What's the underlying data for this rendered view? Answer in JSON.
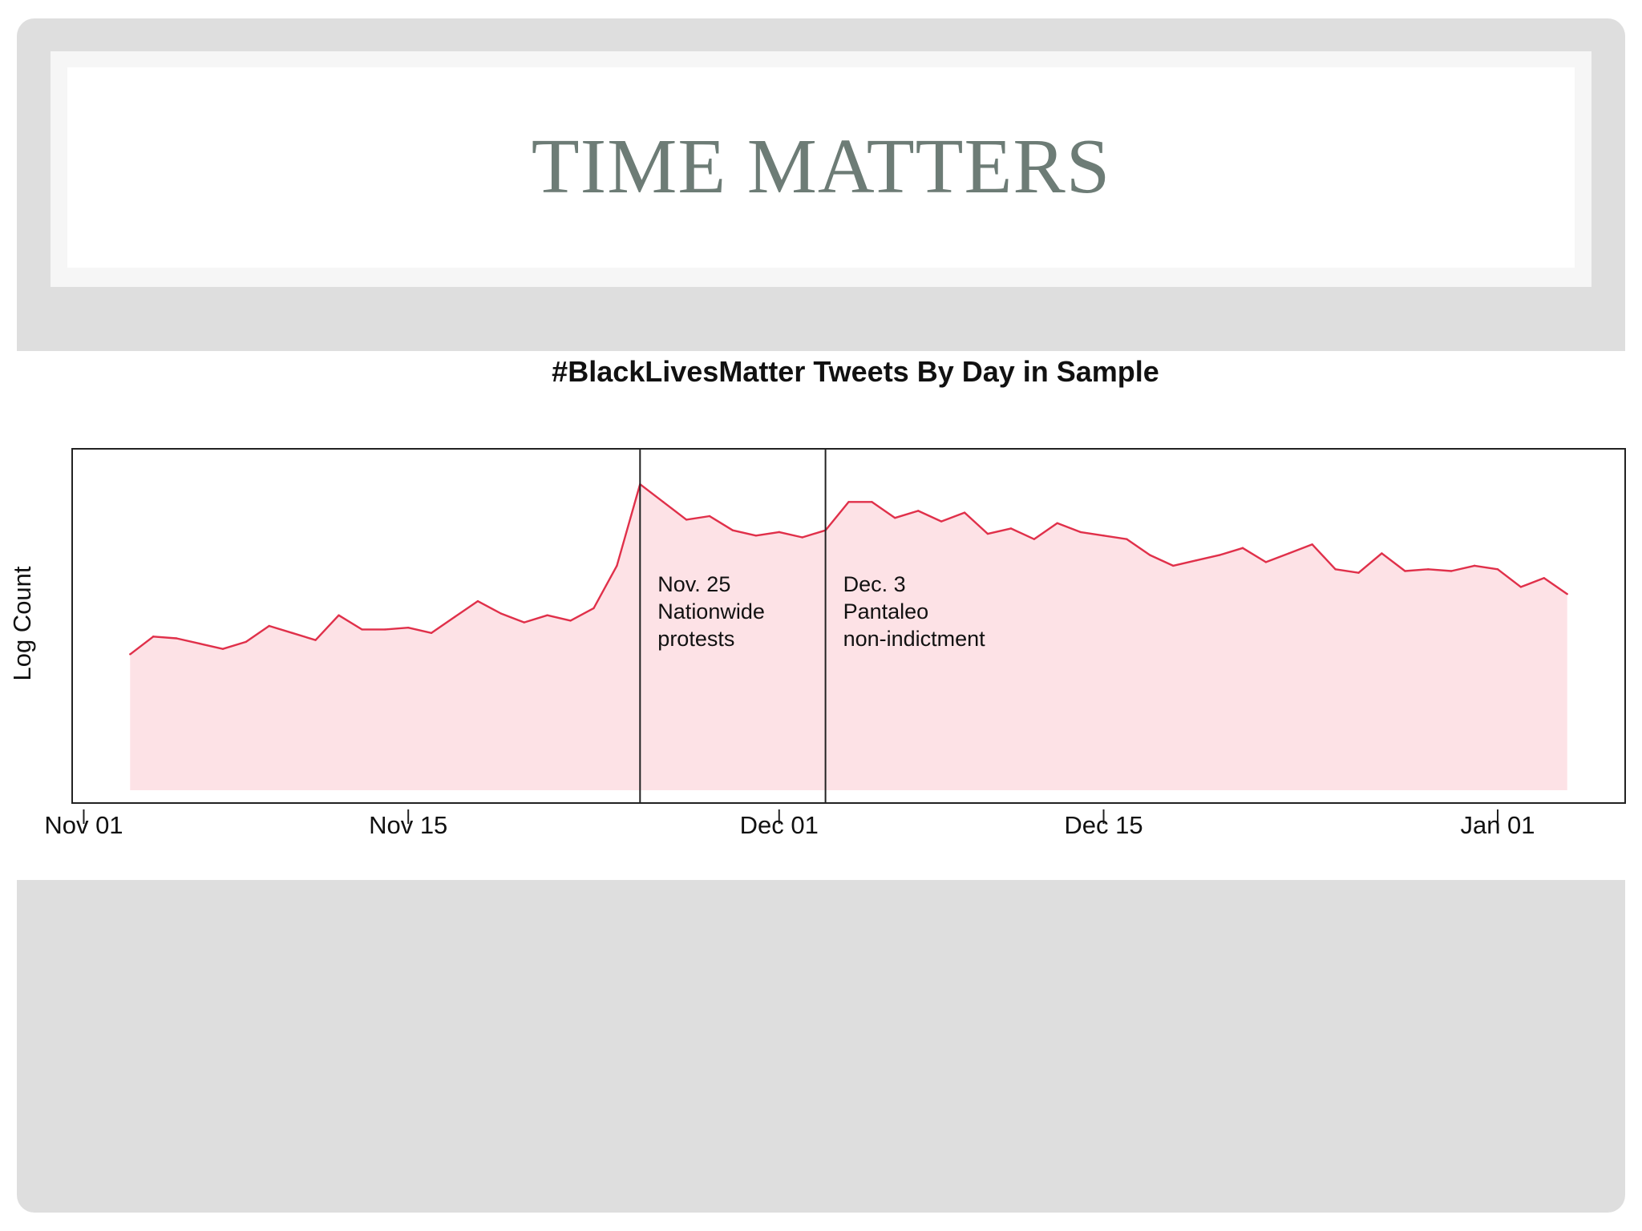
{
  "slide": {
    "title": "TIME MATTERS"
  },
  "chart_data": {
    "type": "area",
    "title": "#BlackLivesMatter Tweets By Day in Sample",
    "xlabel": "",
    "ylabel": "Log Count",
    "x_ticks": [
      {
        "label": "Nov 01",
        "day": 0
      },
      {
        "label": "Nov 15",
        "day": 14
      },
      {
        "label": "Dec 01",
        "day": 30
      },
      {
        "label": "Dec 15",
        "day": 44
      },
      {
        "label": "Jan 01",
        "day": 61
      }
    ],
    "xlim": [
      -0.5,
      66.5
    ],
    "ylim": [
      0,
      100
    ],
    "series": [
      {
        "name": "#BlackLivesMatter tweets",
        "line_color": "#e0304a",
        "fill_color": "#fde2e6",
        "days": [
          2,
          3,
          4,
          5,
          6,
          7,
          8,
          9,
          10,
          11,
          12,
          13,
          14,
          15,
          16,
          17,
          18,
          19,
          20,
          21,
          22,
          23,
          24,
          25,
          26,
          27,
          28,
          29,
          30,
          31,
          32,
          33,
          34,
          35,
          36,
          37,
          38,
          39,
          40,
          41,
          42,
          43,
          44,
          45,
          46,
          47,
          48,
          49,
          50,
          51,
          52,
          53,
          54,
          55,
          56,
          57,
          58,
          59,
          60,
          61,
          62,
          63,
          64
        ],
        "values": [
          42,
          47,
          46.5,
          45,
          43.5,
          45.5,
          50,
          48,
          46,
          53,
          49,
          49,
          49.5,
          48,
          52.5,
          57,
          53.5,
          51,
          53,
          51.5,
          55,
          67,
          90,
          85,
          80,
          81,
          77,
          75.5,
          76.5,
          75,
          77,
          85,
          85,
          80.5,
          82.5,
          79.5,
          82,
          76,
          77.5,
          74.5,
          79,
          76.5,
          75.5,
          74.5,
          70,
          67,
          68.5,
          70,
          72,
          68,
          70.5,
          73,
          66,
          65,
          70.5,
          65.5,
          66,
          65.5,
          67,
          66,
          61,
          63.5,
          59
        ]
      }
    ],
    "annotations": [
      {
        "day": 24,
        "label_lines": [
          "Nov. 25",
          "Nationwide",
          "protests"
        ]
      },
      {
        "day": 32,
        "label_lines": [
          "Dec. 3",
          "Pantaleo",
          "non-indictment"
        ]
      }
    ]
  }
}
